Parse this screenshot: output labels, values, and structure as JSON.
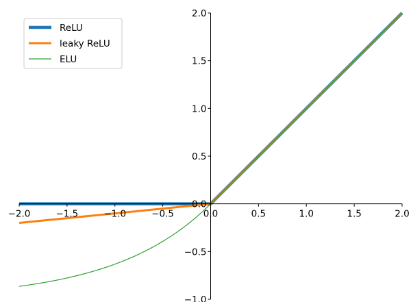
{
  "chart_data": {
    "type": "line",
    "title": "",
    "xlabel": "",
    "ylabel": "",
    "xlim": [
      -2.0,
      2.0
    ],
    "ylim": [
      -1.0,
      2.0
    ],
    "grid": false,
    "legend_position": "top-left",
    "spines": "centered at origin",
    "x_ticks": [
      "−2.0",
      "−1.5",
      "−1.0",
      "−0.5",
      "0.0",
      "0.5",
      "1.0",
      "1.5",
      "2.0"
    ],
    "y_ticks": [
      "−1.0",
      "−0.5",
      "0.0",
      "0.5",
      "1.0",
      "1.5",
      "2.0"
    ],
    "x": [
      -2.0,
      -1.75,
      -1.5,
      -1.25,
      -1.0,
      -0.75,
      -0.5,
      -0.25,
      0.0,
      0.5,
      1.0,
      1.5,
      2.0
    ],
    "series": [
      {
        "name": "ReLU",
        "color": "#1f77b4",
        "values": [
          0,
          0,
          0,
          0,
          0,
          0,
          0,
          0,
          0,
          0.5,
          1.0,
          1.5,
          2.0
        ]
      },
      {
        "name": "leaky ReLU",
        "color": "#ff7f0e",
        "values": [
          -0.2,
          -0.175,
          -0.15,
          -0.125,
          -0.1,
          -0.075,
          -0.05,
          -0.025,
          0,
          0.5,
          1.0,
          1.5,
          2.0
        ]
      },
      {
        "name": "ELU",
        "color": "#2ca02c",
        "values": [
          -0.865,
          -0.826,
          -0.777,
          -0.713,
          -0.632,
          -0.528,
          -0.393,
          -0.221,
          0,
          0.5,
          1.0,
          1.5,
          2.0
        ]
      }
    ]
  }
}
